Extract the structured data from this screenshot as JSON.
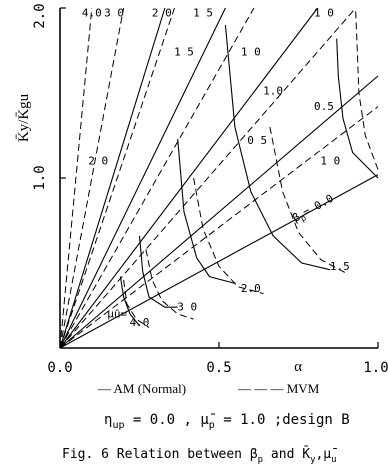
{
  "chart_data": {
    "type": "line",
    "xlabel": "α",
    "ylabel": "K̄y/K̄gu",
    "xlim": [
      0,
      1.0
    ],
    "ylim": [
      0,
      2.0
    ],
    "x_ticks": [
      "0.0",
      "0.5",
      "1.0"
    ],
    "y_ticks": [
      "1.0",
      "2.0"
    ],
    "legend": {
      "solid": "— AM (Normal)",
      "dashed": "— — — MVM"
    },
    "conditions": "η",
    "conditions_sub": "up",
    "conditions_rest": " = 0.0 , μ̄",
    "conditions_sub2": "p",
    "conditions_rest2": " = 1.0  ;design B",
    "caption": "Fig. 6  Relation between β",
    "caption_sub": "p",
    "caption_rest": " and K̄",
    "caption_sub2": "y",
    "caption_rest2": ",μ̄",
    "caption_sub3": "u",
    "series": [
      {
        "group": "beta_p",
        "label": "β",
        "label_sub": "p",
        "label_rest": "= 0.0",
        "style": "solid",
        "x": [
          0,
          1.0
        ],
        "y": [
          0,
          1.02
        ]
      },
      {
        "group": "beta_p",
        "label": "0.5",
        "style": "solid",
        "x": [
          0,
          1.0
        ],
        "y": [
          0,
          1.6
        ]
      },
      {
        "group": "beta_p",
        "label": "1.0",
        "style": "solid",
        "x": [
          0,
          0.81
        ],
        "y": [
          0,
          2.0
        ]
      },
      {
        "group": "beta_p",
        "label": "1.5",
        "style": "solid",
        "x": [
          0,
          0.52
        ],
        "y": [
          0,
          2.0
        ]
      },
      {
        "group": "beta_p",
        "label": "2.0",
        "style": "solid",
        "x": [
          0,
          0.33
        ],
        "y": [
          0,
          2.0
        ]
      },
      {
        "group": "beta_p",
        "label": "0.5",
        "style": "dashed",
        "x": [
          0,
          1.0
        ],
        "y": [
          0,
          1.42
        ]
      },
      {
        "group": "beta_p",
        "label": "1.0",
        "style": "dashed",
        "x": [
          0,
          0.93
        ],
        "y": [
          0,
          2.0
        ]
      },
      {
        "group": "beta_p",
        "label": "1.5",
        "style": "dashed",
        "x": [
          0,
          0.61
        ],
        "y": [
          0,
          2.0
        ]
      },
      {
        "group": "beta_p",
        "label": "2.0",
        "style": "dashed",
        "x": [
          0,
          0.36
        ],
        "y": [
          0,
          2.0
        ]
      },
      {
        "group": "beta_p",
        "label": "3.0",
        "style": "dashed",
        "x": [
          0,
          0.2
        ],
        "y": [
          0,
          2.0
        ]
      },
      {
        "group": "beta_p",
        "label": "4.0",
        "style": "dashed",
        "x": [
          0,
          0.1
        ],
        "y": [
          0,
          2.0
        ]
      },
      {
        "group": "mu_u",
        "label": "1.0",
        "style": "solid",
        "x": [
          0.87,
          0.875,
          0.89,
          0.92,
          1.0
        ],
        "y": [
          1.82,
          1.6,
          1.35,
          1.15,
          1.0
        ]
      },
      {
        "group": "mu_u",
        "label": "1.5",
        "style": "solid",
        "x": [
          0.52,
          0.55,
          0.6,
          0.67,
          0.76,
          0.85
        ],
        "y": [
          1.9,
          1.3,
          0.92,
          0.66,
          0.5,
          0.46
        ]
      },
      {
        "group": "mu_u",
        "label": "2.0",
        "style": "solid",
        "x": [
          0.37,
          0.39,
          0.43,
          0.47,
          0.55
        ],
        "y": [
          1.23,
          0.8,
          0.53,
          0.42,
          0.38
        ]
      },
      {
        "group": "mu_u",
        "label": "3.0",
        "style": "solid",
        "x": [
          0.25,
          0.26,
          0.28,
          0.33,
          0.37
        ],
        "y": [
          0.66,
          0.45,
          0.3,
          0.24,
          0.24
        ]
      },
      {
        "group": "mu_u",
        "label": "4.0",
        "style": "solid",
        "x": [
          0.19,
          0.2,
          0.22,
          0.25
        ],
        "y": [
          0.42,
          0.3,
          0.2,
          0.13
        ]
      },
      {
        "group": "mu_u",
        "label": "1.0",
        "style": "dashed",
        "x": [
          0.93,
          0.935,
          0.94,
          0.96,
          1.0
        ],
        "y": [
          1.98,
          1.75,
          1.5,
          1.25,
          1.05
        ]
      },
      {
        "group": "mu_u",
        "label": "1.5",
        "style": "dashed",
        "x": [
          0.66,
          0.7,
          0.75,
          0.82,
          0.9
        ],
        "y": [
          1.3,
          0.92,
          0.68,
          0.52,
          0.44
        ]
      },
      {
        "group": "mu_u",
        "label": "2.0",
        "style": "dashed",
        "x": [
          0.42,
          0.45,
          0.5,
          0.56,
          0.64
        ],
        "y": [
          1.0,
          0.7,
          0.48,
          0.36,
          0.32
        ]
      },
      {
        "group": "mu_u",
        "label": "3.0",
        "style": "dashed",
        "x": [
          0.27,
          0.29,
          0.32,
          0.37,
          0.42
        ],
        "y": [
          0.58,
          0.4,
          0.28,
          0.2,
          0.17
        ]
      },
      {
        "group": "mu_u",
        "label": "4.0",
        "style": "dashed",
        "x": [
          0.2,
          0.21,
          0.24,
          0.28
        ],
        "y": [
          0.4,
          0.26,
          0.17,
          0.12
        ]
      }
    ],
    "curve_labels": [
      {
        "text": "1.5",
        "x": 0.88,
        "y": 0.46
      },
      {
        "text": "2.0",
        "x": 0.6,
        "y": 0.33
      },
      {
        "text": "3 0",
        "x": 0.4,
        "y": 0.22
      },
      {
        "text": "4.0",
        "x": 0.25,
        "y": 0.13
      },
      {
        "text": "μ̄u=",
        "x": 0.18,
        "y": 0.18
      },
      {
        "text": "1 0",
        "x": 0.85,
        "y": 1.08
      },
      {
        "text": "0.5",
        "x": 0.83,
        "y": 1.4
      },
      {
        "text": "1.0",
        "x": 0.67,
        "y": 1.49
      },
      {
        "text": "0 5",
        "x": 0.62,
        "y": 1.2
      },
      {
        "text": "1 0",
        "x": 0.6,
        "y": 1.72
      },
      {
        "text": "1 5",
        "x": 0.39,
        "y": 1.72
      },
      {
        "text": "2 0",
        "x": 0.12,
        "y": 1.08
      },
      {
        "text": "4.0",
        "x": 0.1,
        "y": 1.95
      },
      {
        "text": "3 0",
        "x": 0.17,
        "y": 1.95
      },
      {
        "text": "2 0",
        "x": 0.32,
        "y": 1.95
      },
      {
        "text": "1 5",
        "x": 0.45,
        "y": 1.95
      },
      {
        "text": "1 0",
        "x": 0.83,
        "y": 1.95
      }
    ]
  }
}
